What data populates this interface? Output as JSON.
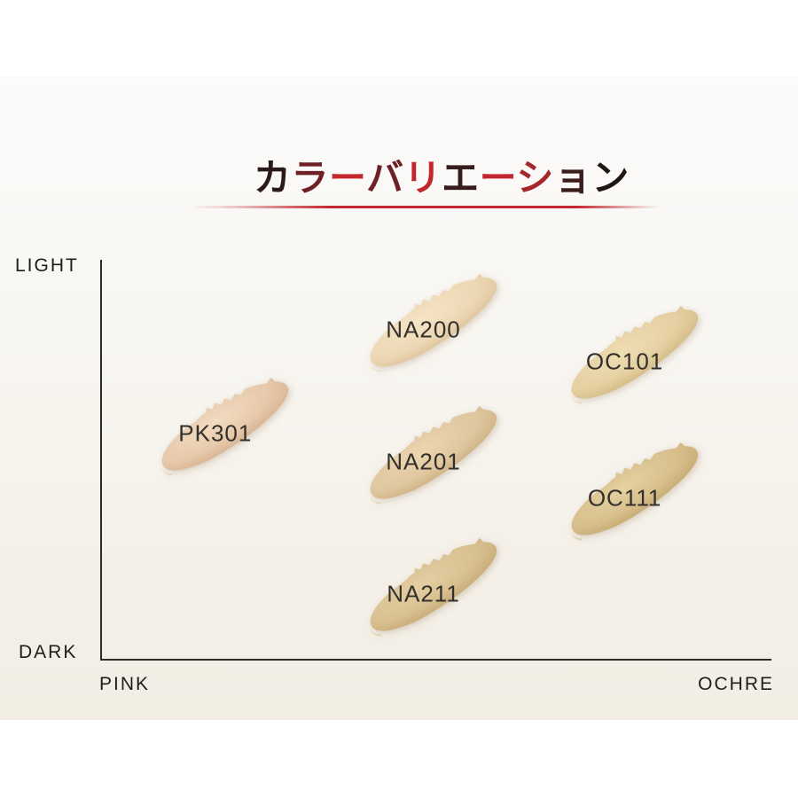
{
  "page": {
    "background": "#ffffff",
    "band_gradient_top": "#fbfbfb",
    "band_gradient_bottom": "#f2eee4"
  },
  "title": {
    "text": "カラーバリエーション",
    "chars": [
      {
        "ch": "カ",
        "color": "#2a1b18"
      },
      {
        "ch": "ラ",
        "color": "#6e2124"
      },
      {
        "ch": "ー",
        "color": "#c1272d"
      },
      {
        "ch": "バ",
        "color": "#6d2125"
      },
      {
        "ch": "リ",
        "color": "#c1272d"
      },
      {
        "ch": "エ",
        "color": "#381b1b"
      },
      {
        "ch": "ー",
        "color": "#c1272d"
      },
      {
        "ch": "シ",
        "color": "#a5272c"
      },
      {
        "ch": "ョ",
        "color": "#3a1c1b"
      },
      {
        "ch": "ン",
        "color": "#201613"
      }
    ]
  },
  "divider": {
    "color": "#c1272d"
  },
  "chart": {
    "axis_color": "#2b2b2b",
    "y_top_label": "LIGHT",
    "y_bottom_label": "DARK",
    "x_left_label": "PINK",
    "x_right_label": "OCHRE"
  },
  "chart_data": {
    "type": "scatter",
    "title": "カラーバリエーション",
    "x_axis": {
      "left_end": "PINK",
      "right_end": "OCHRE",
      "range": [
        0,
        1
      ]
    },
    "y_axis": {
      "top_end": "LIGHT",
      "bottom_end": "DARK",
      "range": [
        0,
        1
      ]
    },
    "grid": false,
    "legend": false,
    "points": [
      {
        "label": "PK301",
        "x": 0.19,
        "y": 0.41,
        "tone": "pink",
        "colors": {
          "light": "#f2dcc2",
          "base": "#e7c9ab",
          "dark": "#d0aa87"
        }
      },
      {
        "label": "NA200",
        "x": 0.5,
        "y": 0.15,
        "tone": "natural",
        "colors": {
          "light": "#f5e4c6",
          "base": "#edd8b5",
          "dark": "#d8bb92"
        }
      },
      {
        "label": "NA201",
        "x": 0.5,
        "y": 0.48,
        "tone": "natural",
        "colors": {
          "light": "#ecd6b0",
          "base": "#dfc79f",
          "dark": "#c8a97a"
        }
      },
      {
        "label": "NA211",
        "x": 0.5,
        "y": 0.81,
        "tone": "natural",
        "colors": {
          "light": "#e4cfa3",
          "base": "#d8c091",
          "dark": "#bfa36d"
        }
      },
      {
        "label": "OC101",
        "x": 0.8,
        "y": 0.23,
        "tone": "ochre",
        "colors": {
          "light": "#efddb3",
          "base": "#e5d0a2",
          "dark": "#ccb279"
        }
      },
      {
        "label": "OC111",
        "x": 0.8,
        "y": 0.57,
        "tone": "ochre",
        "colors": {
          "light": "#e5d1a2",
          "base": "#d8bf8d",
          "dark": "#bda267"
        }
      }
    ]
  }
}
